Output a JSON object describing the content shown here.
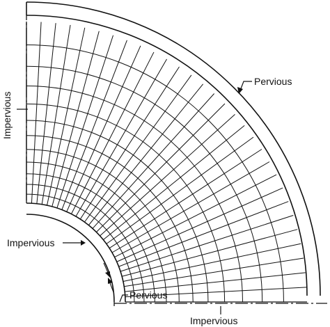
{
  "labels": {
    "left_boundary": "Impervious",
    "outer_boundary": "Pervious",
    "inner_boundary": "Impervious",
    "bottom_inner_gap": "Pervious",
    "bottom_boundary": "Impervious"
  },
  "flow_net": {
    "flow_line_count": 12,
    "equipotential_count": 30
  },
  "colors": {
    "ink": "#111111",
    "background": "#ffffff"
  }
}
